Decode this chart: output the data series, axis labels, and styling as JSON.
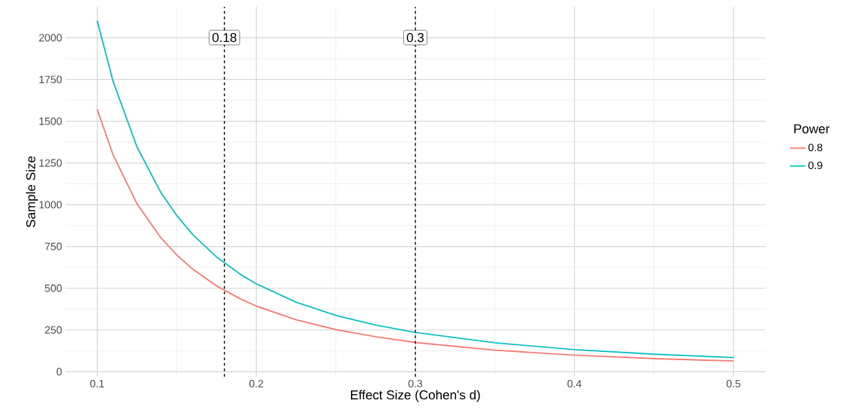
{
  "chart_data": {
    "type": "line",
    "xlabel": "Effect Size (Cohen's d)",
    "ylabel": "Sample Size",
    "legend_title": "Power",
    "x": [
      0.1,
      0.11,
      0.125,
      0.14,
      0.15,
      0.16,
      0.175,
      0.19,
      0.2,
      0.225,
      0.25,
      0.275,
      0.3,
      0.35,
      0.4,
      0.45,
      0.5
    ],
    "series": [
      {
        "name": "0.8",
        "color": "#f8766d",
        "values": [
          1571,
          1298,
          1006,
          802,
          699,
          614,
          514,
          436,
          393,
          311,
          252,
          209,
          175,
          129,
          99,
          78,
          64
        ]
      },
      {
        "name": "0.9",
        "color": "#00bfc4",
        "values": [
          2102,
          1738,
          1346,
          1073,
          935,
          822,
          687,
          583,
          526,
          416,
          337,
          279,
          235,
          173,
          132,
          105,
          85
        ]
      }
    ],
    "xlim": [
      0.08,
      0.52
    ],
    "ylim": [
      -30,
      2185
    ],
    "xticks": [
      0.1,
      0.2,
      0.3,
      0.4,
      0.5
    ],
    "yticks": [
      0,
      250,
      500,
      750,
      1000,
      1250,
      1500,
      1750,
      2000
    ],
    "ref_lines": [
      {
        "axis": "x",
        "value": 0.18,
        "label": "0.18",
        "color": "#000000",
        "line_style": "dashed"
      },
      {
        "axis": "x",
        "value": 0.3,
        "label": "0.3",
        "color": "#000000",
        "line_style": "dashed"
      }
    ],
    "grid": true,
    "legend": "right",
    "marker": "none",
    "line_style": "solid"
  }
}
